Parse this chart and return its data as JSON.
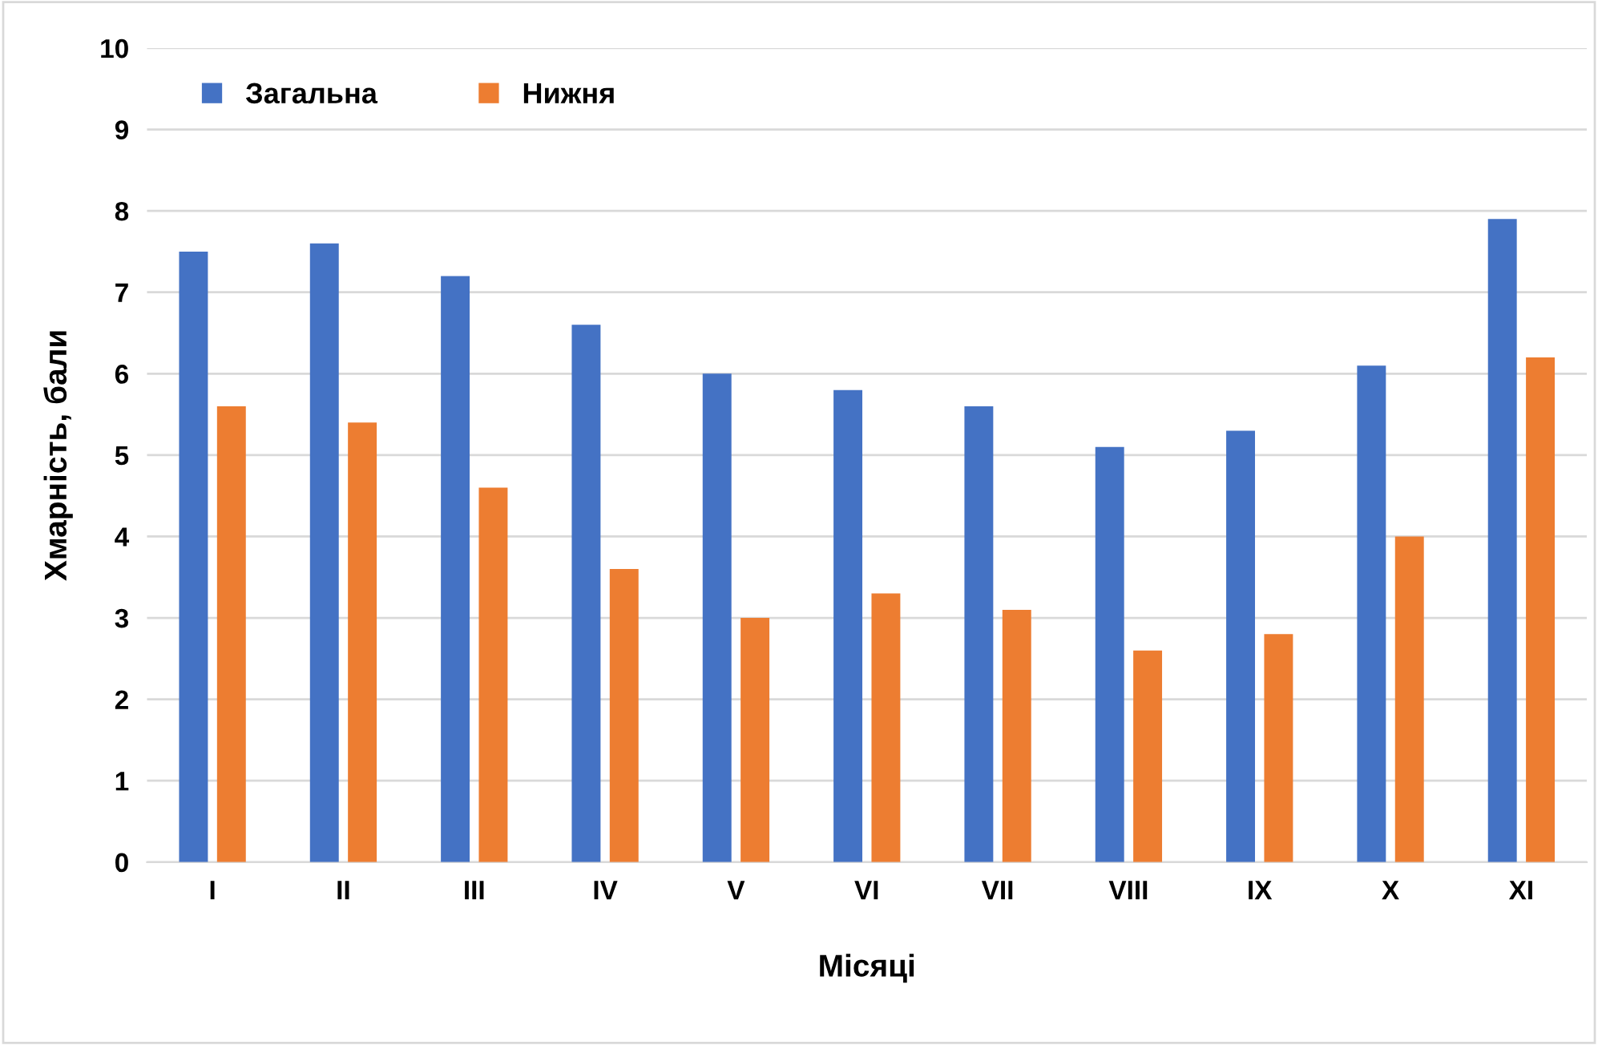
{
  "chart_data": {
    "type": "bar",
    "xlabel": "Місяці",
    "ylabel": "Хмарність, бали",
    "categories": [
      "I",
      "II",
      "III",
      "IV",
      "V",
      "VI",
      "VII",
      "VIII",
      "IX",
      "X",
      "XI"
    ],
    "series": [
      {
        "name": "Загальна",
        "color": "#4472c4",
        "values": [
          7.5,
          7.6,
          7.2,
          6.6,
          6.0,
          5.8,
          5.6,
          5.1,
          5.3,
          6.1,
          7.9
        ]
      },
      {
        "name": "Нижня",
        "color": "#ed7d31",
        "values": [
          5.6,
          5.4,
          4.6,
          3.6,
          3.0,
          3.3,
          3.1,
          2.6,
          2.8,
          4.0,
          6.2
        ]
      }
    ],
    "ylim": [
      0,
      10
    ],
    "yticks": [
      0,
      1,
      2,
      3,
      4,
      5,
      6,
      7,
      8,
      9,
      10
    ],
    "grid": "y",
    "legend": "top left"
  }
}
